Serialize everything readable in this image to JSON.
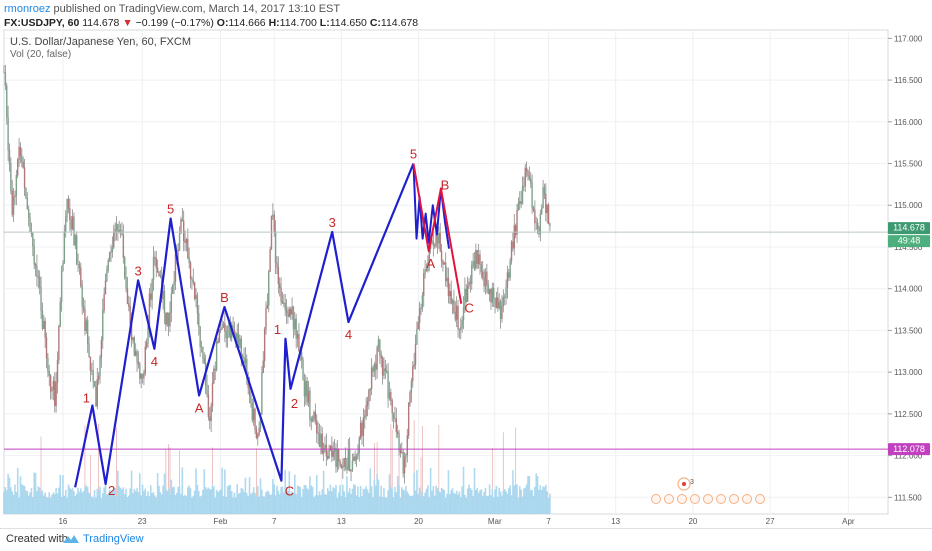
{
  "header": {
    "user": "rmonroez",
    "published": "published on TradingView.com, March 14, 2017 13:10 EST",
    "symbol": "FX:USDJPY, 60",
    "last": "114.678",
    "change": "−0.199 (−0.17%)",
    "ohlc_o_label": "O:",
    "ohlc_o": "114.666",
    "ohlc_h_label": "H:",
    "ohlc_h": "114.700",
    "ohlc_l_label": "L:",
    "ohlc_l": "114.650",
    "ohlc_c_label": "C:",
    "ohlc_c": "114.678"
  },
  "legend": {
    "instrument": "U.S. Dollar/Japanese Yen, 60, FXCM",
    "volume": "Vol (20, false)"
  },
  "badges": {
    "price": "114.678",
    "countdown": "49:48",
    "level": "112.078"
  },
  "footer": {
    "created_with": "Created with",
    "brand": "TradingView"
  },
  "colors": {
    "wave_blue": "#1f1fcf",
    "wave_red": "#e0143c",
    "label_red": "#c62828",
    "level_line": "#c040c0",
    "price_badge": "#3d9970",
    "candle": "#8a8a8a",
    "volume": "#9bd0ec"
  },
  "chart_data": {
    "type": "line",
    "title": "U.S. Dollar/Japanese Yen, 60, FXCM",
    "y_axis": {
      "side": "right",
      "ylim": [
        111.3,
        117.1
      ],
      "ticks": [
        "117.000",
        "116.500",
        "116.000",
        "115.500",
        "115.000",
        "114.500",
        "114.000",
        "113.500",
        "113.000",
        "112.500",
        "112.000",
        "111.500"
      ]
    },
    "x_axis": {
      "ticks": [
        "16",
        "23",
        "Feb",
        "7",
        "13",
        "20",
        "Mar",
        "7",
        "13",
        "20",
        "27",
        "Apr"
      ]
    },
    "grid": true,
    "horizontal_lines": [
      {
        "name": "current",
        "value": 114.678
      },
      {
        "name": "level",
        "value": 112.078
      }
    ],
    "series": [
      {
        "name": "",
        "color": "#1f1fcf",
        "points": [
          {
            "t": 7.0,
            "y": 111.62
          },
          {
            "t": 8.7,
            "y": 112.6
          },
          {
            "t": 10.0,
            "y": 111.66,
            "label": "2"
          },
          {
            "t": 13.2,
            "y": 114.1,
            "label": "3"
          },
          {
            "t": 14.8,
            "y": 113.28,
            "label": "4"
          },
          {
            "t": 16.4,
            "y": 114.84,
            "label": "5"
          },
          {
            "t": 19.2,
            "y": 112.72,
            "label": "A"
          },
          {
            "t": 21.7,
            "y": 113.78,
            "label": "B"
          },
          {
            "t": 27.3,
            "y": 111.7,
            "label": "C"
          },
          {
            "t": 27.7,
            "y": 113.4,
            "label": "1"
          },
          {
            "t": 28.2,
            "y": 112.8,
            "label": "2"
          },
          {
            "t": 32.3,
            "y": 114.68,
            "label": "3"
          },
          {
            "t": 33.9,
            "y": 113.6,
            "label": "4"
          },
          {
            "t": 40.3,
            "y": 115.5,
            "label": "5"
          }
        ]
      },
      {
        "name": "",
        "color": "#1f1fcf",
        "points": [
          {
            "t": 40.3,
            "y": 115.5
          },
          {
            "t": 40.6,
            "y": 114.6
          },
          {
            "t": 40.9,
            "y": 115.1
          },
          {
            "t": 41.2,
            "y": 114.6
          },
          {
            "t": 41.5,
            "y": 114.9
          },
          {
            "t": 41.8,
            "y": 114.55
          },
          {
            "t": 42.2,
            "y": 115.0
          },
          {
            "t": 42.6,
            "y": 114.65
          },
          {
            "t": 43.0,
            "y": 115.2
          },
          {
            "t": 43.4,
            "y": 114.8
          },
          {
            "t": 43.8,
            "y": 114.48
          }
        ]
      },
      {
        "name": "",
        "color": "#e0143c",
        "points": [
          {
            "t": 40.3,
            "y": 115.5
          },
          {
            "t": 41.8,
            "y": 114.45
          },
          {
            "t": 43.0,
            "y": 115.2
          },
          {
            "t": 45.0,
            "y": 113.82,
            "label": "C"
          }
        ]
      }
    ],
    "wave_labels": [
      {
        "text": "1",
        "t": 8.7,
        "y": 112.6
      },
      {
        "text": "2",
        "t": 10.0,
        "y": 111.66
      },
      {
        "text": "3",
        "t": 13.2,
        "y": 114.1
      },
      {
        "text": "4",
        "t": 14.8,
        "y": 113.28
      },
      {
        "text": "5",
        "t": 16.4,
        "y": 114.84
      },
      {
        "text": "A",
        "t": 19.2,
        "y": 112.72
      },
      {
        "text": "B",
        "t": 21.7,
        "y": 113.78
      },
      {
        "text": "C",
        "t": 27.3,
        "y": 111.7
      },
      {
        "text": "1",
        "t": 27.7,
        "y": 113.4
      },
      {
        "text": "2",
        "t": 28.2,
        "y": 112.8
      },
      {
        "text": "3",
        "t": 32.3,
        "y": 114.68
      },
      {
        "text": "4",
        "t": 33.9,
        "y": 113.6
      },
      {
        "text": "5",
        "t": 40.3,
        "y": 115.5
      },
      {
        "text": "A",
        "t": 41.8,
        "y": 114.45
      },
      {
        "text": "B",
        "t": 43.0,
        "y": 115.2
      },
      {
        "text": "C",
        "t": 45.0,
        "y": 113.82
      }
    ],
    "price_keyframes": [
      {
        "t": 0.0,
        "y": 116.6
      },
      {
        "t": 0.8,
        "y": 115.0
      },
      {
        "t": 1.6,
        "y": 115.7
      },
      {
        "t": 3.0,
        "y": 114.4
      },
      {
        "t": 4.4,
        "y": 113.0
      },
      {
        "t": 5.0,
        "y": 112.7
      },
      {
        "t": 6.2,
        "y": 115.2
      },
      {
        "t": 7.4,
        "y": 114.2
      },
      {
        "t": 9.0,
        "y": 112.6
      },
      {
        "t": 10.3,
        "y": 114.5
      },
      {
        "t": 11.4,
        "y": 114.8
      },
      {
        "t": 12.6,
        "y": 113.4
      },
      {
        "t": 13.6,
        "y": 112.8
      },
      {
        "t": 14.8,
        "y": 114.5
      },
      {
        "t": 16.2,
        "y": 113.5
      },
      {
        "t": 17.4,
        "y": 114.9
      },
      {
        "t": 18.6,
        "y": 114.1
      },
      {
        "t": 20.2,
        "y": 112.5
      },
      {
        "t": 21.2,
        "y": 113.6
      },
      {
        "t": 22.4,
        "y": 113.5
      },
      {
        "t": 23.6,
        "y": 113.2
      },
      {
        "t": 24.6,
        "y": 112.4
      },
      {
        "t": 25.0,
        "y": 112.1
      },
      {
        "t": 26.4,
        "y": 114.9
      },
      {
        "t": 27.0,
        "y": 114.0
      },
      {
        "t": 28.4,
        "y": 113.7
      },
      {
        "t": 29.6,
        "y": 112.8
      },
      {
        "t": 31.0,
        "y": 112.2
      },
      {
        "t": 32.6,
        "y": 112.0
      },
      {
        "t": 33.4,
        "y": 112.0
      },
      {
        "t": 34.4,
        "y": 111.9
      },
      {
        "t": 35.3,
        "y": 112.4
      },
      {
        "t": 36.8,
        "y": 113.3
      },
      {
        "t": 38.4,
        "y": 112.5
      },
      {
        "t": 39.3,
        "y": 111.8
      },
      {
        "t": 40.5,
        "y": 113.4
      },
      {
        "t": 41.4,
        "y": 114.2
      },
      {
        "t": 42.6,
        "y": 114.7
      },
      {
        "t": 43.8,
        "y": 114.0
      },
      {
        "t": 44.8,
        "y": 113.6
      },
      {
        "t": 46.4,
        "y": 114.4
      },
      {
        "t": 47.8,
        "y": 114.0
      },
      {
        "t": 49.0,
        "y": 113.7
      },
      {
        "t": 50.4,
        "y": 114.8
      },
      {
        "t": 51.5,
        "y": 115.5
      },
      {
        "t": 52.0,
        "y": 115.0
      },
      {
        "t": 52.6,
        "y": 114.7
      },
      {
        "t": 53.1,
        "y": 115.2
      },
      {
        "t": 53.8,
        "y": 114.68
      }
    ]
  }
}
